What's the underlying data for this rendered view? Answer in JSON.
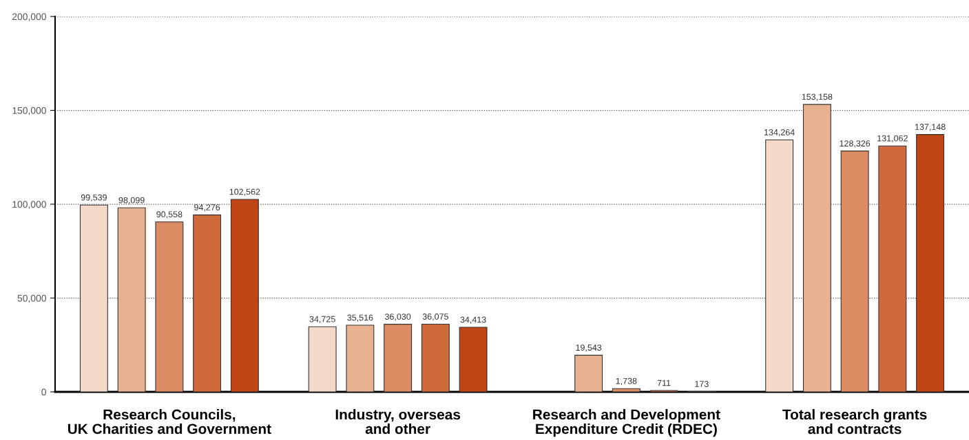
{
  "chart_data": {
    "type": "bar",
    "categories": [
      "Research Councils,\nUK Charities and Government",
      "Industry, overseas\nand other",
      "Research and Development\nExpenditure Credit (RDEC)",
      "Total research grants\nand contracts"
    ],
    "series": [
      {
        "color": "#f5d9c8",
        "values": [
          99539,
          34725,
          null,
          134264
        ],
        "value_labels": [
          "99,539",
          "34,725",
          null,
          "134,264"
        ]
      },
      {
        "color": "#e8b290",
        "values": [
          98099,
          35516,
          19543,
          153158
        ],
        "value_labels": [
          "98,099",
          "35,516",
          "19,543",
          "153,158"
        ]
      },
      {
        "color": "#dc8c62",
        "values": [
          90558,
          36030,
          1738,
          128326
        ],
        "value_labels": [
          "90,558",
          "36,030",
          "1,738",
          "128,326"
        ]
      },
      {
        "color": "#cf6a3b",
        "values": [
          94276,
          36075,
          711,
          131062
        ],
        "value_labels": [
          "94,276",
          "36,075",
          "711",
          "131,062"
        ]
      },
      {
        "color": "#c04514",
        "values": [
          102562,
          34413,
          173,
          137148
        ],
        "value_labels": [
          "102,562",
          "34,413",
          "173",
          "137,148"
        ]
      }
    ],
    "ylim": [
      0,
      200000
    ],
    "yticks": [
      {
        "value": 0,
        "label": "0"
      },
      {
        "value": 50000,
        "label": "50,000"
      },
      {
        "value": 100000,
        "label": "100,000"
      },
      {
        "value": 150000,
        "label": "150,000"
      },
      {
        "value": 200000,
        "label": "200,000"
      }
    ],
    "grid": "y",
    "legend": false
  }
}
